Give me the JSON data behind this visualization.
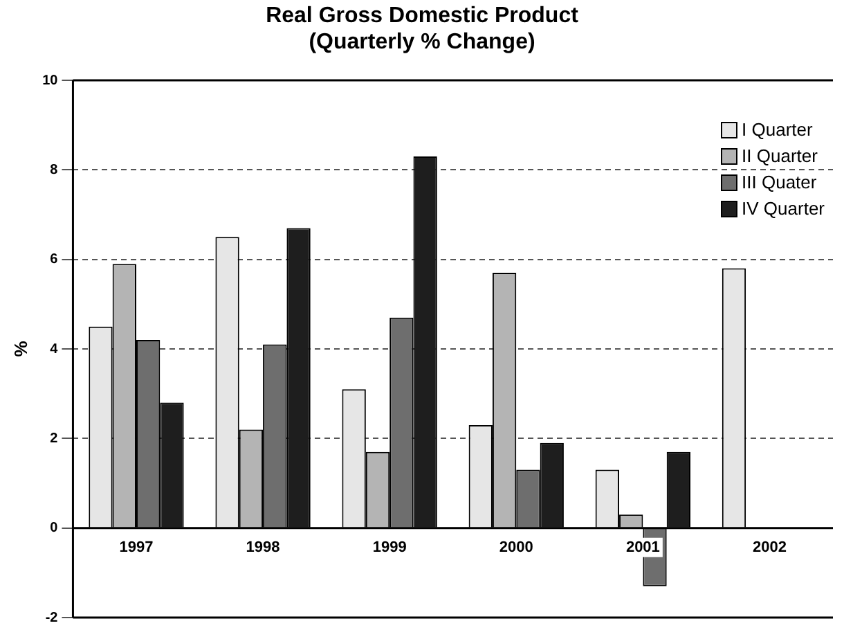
{
  "chart_data": {
    "type": "bar",
    "title": "Real Gross Domestic Product\n(Quarterly % Change)",
    "ylabel": "%",
    "categories": [
      "1997",
      "1998",
      "1999",
      "2000",
      "2001",
      "2002"
    ],
    "series": [
      {
        "name": "I Quarter",
        "color": "#e6e6e6",
        "values": [
          4.5,
          6.5,
          3.1,
          2.3,
          1.3,
          5.8
        ]
      },
      {
        "name": "II Quarter",
        "color": "#b4b4b4",
        "values": [
          5.9,
          2.2,
          1.7,
          5.7,
          0.3,
          null
        ]
      },
      {
        "name": "III Quater",
        "color": "#6e6e6e",
        "values": [
          4.2,
          4.1,
          4.7,
          1.3,
          -1.3,
          null
        ]
      },
      {
        "name": "IV Quarter",
        "color": "#1e1e1e",
        "values": [
          2.8,
          6.7,
          8.3,
          1.9,
          1.7,
          null
        ]
      }
    ],
    "ylim": [
      -2,
      10
    ],
    "yticks": [
      -2,
      0,
      2,
      4,
      6,
      8,
      10
    ],
    "grid": "y",
    "legend": "top right"
  }
}
